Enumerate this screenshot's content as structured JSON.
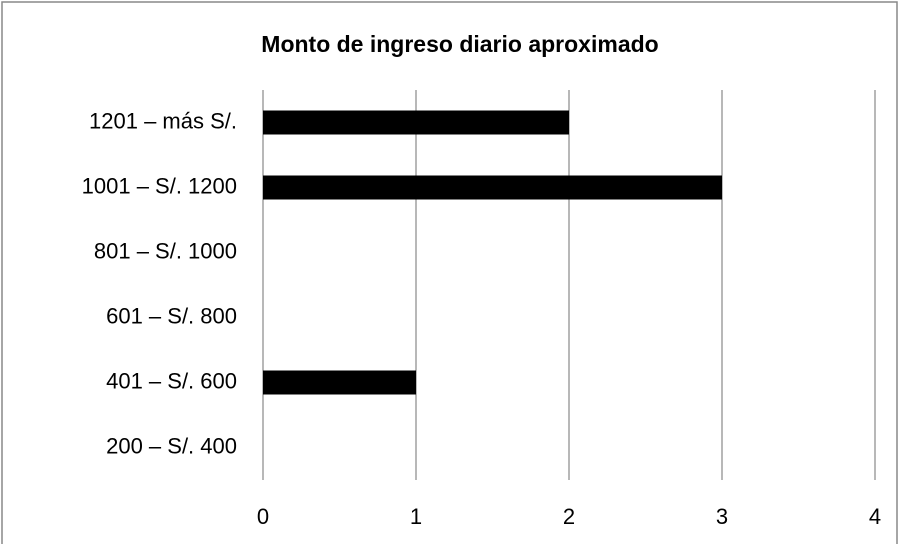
{
  "chart_data": {
    "type": "bar",
    "orientation": "horizontal",
    "title": "Monto de ingreso diario aproximado",
    "categories": [
      "1201 – más S/.",
      "1001 – S/. 1200",
      "801 – S/. 1000",
      "601 – S/. 800",
      "401 – S/. 600",
      "200 – S/. 400"
    ],
    "values": [
      2,
      3,
      0,
      0,
      1,
      0
    ],
    "color": "#000000",
    "xlim": [
      0,
      4
    ],
    "xticks": [
      0,
      1,
      2,
      3,
      4
    ],
    "grid": true
  }
}
